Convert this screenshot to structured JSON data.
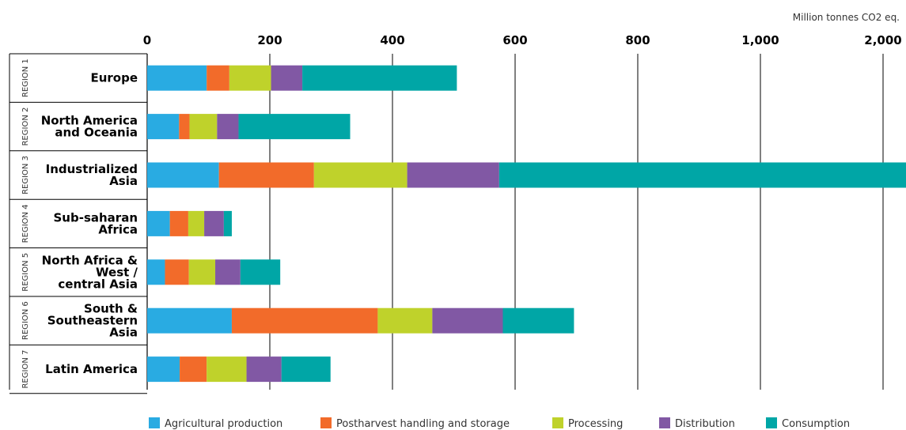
{
  "chart_data": {
    "type": "bar",
    "orientation": "horizontal",
    "stacked": true,
    "unit_label": "Million tonnes CO2 eq.",
    "x_ticks": [
      "0",
      "200",
      "400",
      "600",
      "800",
      "1,000",
      "2,000"
    ],
    "x_tick_values": [
      0,
      200,
      400,
      600,
      800,
      1000,
      2000
    ],
    "grid": true,
    "legend_position": "bottom",
    "regions": [
      "REGION 1",
      "REGION 2",
      "REGION 3",
      "REGION 4",
      "REGION 5",
      "REGION 6",
      "REGION 7"
    ],
    "categories": [
      [
        "Europe"
      ],
      [
        "North America",
        "and Oceania"
      ],
      [
        "Industrialized",
        "Asia"
      ],
      [
        "Sub-saharan",
        "Africa"
      ],
      [
        "North Africa &",
        "West /",
        "central Asia"
      ],
      [
        "South &",
        "Southeastern",
        "Asia"
      ],
      [
        "Latin America"
      ]
    ],
    "series": [
      {
        "name": "Agricultural production",
        "color": "#29ABE2",
        "values": [
          97,
          52,
          117,
          37,
          29,
          138,
          53
        ]
      },
      {
        "name": "Postharvest handling and storage",
        "color": "#F26B2A",
        "values": [
          37,
          17,
          155,
          30,
          39,
          238,
          44
        ]
      },
      {
        "name": "Processing",
        "color": "#BFD22B",
        "values": [
          68,
          45,
          152,
          26,
          43,
          89,
          65
        ]
      },
      {
        "name": "Distribution",
        "color": "#8158A4",
        "values": [
          51,
          35,
          150,
          32,
          41,
          115,
          57
        ]
      },
      {
        "name": "Consumption",
        "color": "#00A6A6",
        "values": [
          252,
          182,
          1310,
          13,
          65,
          116,
          80
        ]
      }
    ]
  }
}
